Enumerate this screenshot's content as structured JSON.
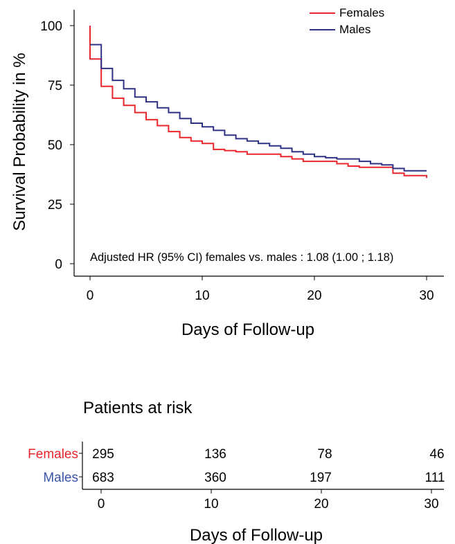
{
  "chart_data": [
    {
      "type": "line",
      "step": true,
      "xlabel": "Days of Follow-up",
      "ylabel": "Survival Probability in %",
      "xlim": [
        0,
        30
      ],
      "ylim": [
        0,
        100
      ],
      "xticks": [
        "0",
        "10",
        "20",
        "30"
      ],
      "yticks": [
        "0",
        "25",
        "50",
        "75",
        "100"
      ],
      "annotation": "Adjusted HR (95% CI) females vs. males : 1.08 (1.00 ; 1.18)",
      "legend_position": "top-right",
      "series": [
        {
          "name": "Females",
          "color": "#e8262b",
          "points": [
            [
              0,
              100
            ],
            [
              0,
              86
            ],
            [
              1,
              86
            ],
            [
              1,
              74.5
            ],
            [
              2,
              74.5
            ],
            [
              2,
              69.5
            ],
            [
              3,
              69.5
            ],
            [
              3,
              66.5
            ],
            [
              4,
              66.5
            ],
            [
              4,
              63.5
            ],
            [
              5,
              63.5
            ],
            [
              5,
              60.5
            ],
            [
              6,
              60.5
            ],
            [
              6,
              58
            ],
            [
              7,
              58
            ],
            [
              7,
              55.5
            ],
            [
              8,
              55.5
            ],
            [
              8,
              53
            ],
            [
              9,
              53
            ],
            [
              9,
              51.5
            ],
            [
              10,
              51.5
            ],
            [
              10,
              50.5
            ],
            [
              11,
              50.5
            ],
            [
              11,
              48
            ],
            [
              12,
              48
            ],
            [
              12,
              47.5
            ],
            [
              13,
              47.5
            ],
            [
              13,
              47
            ],
            [
              14,
              47
            ],
            [
              14,
              46
            ],
            [
              17,
              46
            ],
            [
              17,
              45
            ],
            [
              18,
              45
            ],
            [
              18,
              44
            ],
            [
              19,
              44
            ],
            [
              19,
              43
            ],
            [
              22,
              43
            ],
            [
              22,
              42
            ],
            [
              23,
              42
            ],
            [
              23,
              41
            ],
            [
              24,
              41
            ],
            [
              24,
              40.5
            ],
            [
              27,
              40.5
            ],
            [
              27,
              38
            ],
            [
              28,
              38
            ],
            [
              28,
              37
            ],
            [
              30,
              37
            ],
            [
              30,
              36
            ]
          ]
        },
        {
          "name": "Males",
          "color": "#2e3285",
          "points": [
            [
              0,
              92
            ],
            [
              1,
              92
            ],
            [
              1,
              82
            ],
            [
              2,
              82
            ],
            [
              2,
              77
            ],
            [
              3,
              77
            ],
            [
              3,
              73.5
            ],
            [
              4,
              73.5
            ],
            [
              4,
              70
            ],
            [
              5,
              70
            ],
            [
              5,
              68
            ],
            [
              6,
              68
            ],
            [
              6,
              65.5
            ],
            [
              7,
              65.5
            ],
            [
              7,
              63.5
            ],
            [
              8,
              63.5
            ],
            [
              8,
              61
            ],
            [
              9,
              61
            ],
            [
              9,
              59
            ],
            [
              10,
              59
            ],
            [
              10,
              57.5
            ],
            [
              11,
              57.5
            ],
            [
              11,
              56
            ],
            [
              12,
              56
            ],
            [
              12,
              54
            ],
            [
              13,
              54
            ],
            [
              13,
              52.5
            ],
            [
              14,
              52.5
            ],
            [
              14,
              51.5
            ],
            [
              15,
              51.5
            ],
            [
              15,
              50.5
            ],
            [
              16,
              50.5
            ],
            [
              16,
              49.5
            ],
            [
              17,
              49.5
            ],
            [
              17,
              48.5
            ],
            [
              18,
              48.5
            ],
            [
              18,
              47
            ],
            [
              19,
              47
            ],
            [
              19,
              46
            ],
            [
              20,
              46
            ],
            [
              20,
              45
            ],
            [
              21,
              45
            ],
            [
              21,
              44.5
            ],
            [
              22,
              44.5
            ],
            [
              22,
              44
            ],
            [
              24,
              44
            ],
            [
              24,
              43
            ],
            [
              25,
              43
            ],
            [
              25,
              42
            ],
            [
              26,
              42
            ],
            [
              26,
              41.5
            ],
            [
              27,
              41.5
            ],
            [
              27,
              40
            ],
            [
              28,
              40
            ],
            [
              28,
              39
            ],
            [
              30,
              39
            ]
          ]
        }
      ]
    },
    {
      "type": "table",
      "title": "Patients at risk",
      "xlabel": "Days of Follow-up",
      "xticks": [
        "0",
        "10",
        "20",
        "30"
      ],
      "rows": [
        {
          "name": "Females",
          "color": "#e8262b",
          "values": [
            "295",
            "136",
            "78",
            "46"
          ]
        },
        {
          "name": "Males",
          "color": "#3a55a8",
          "values": [
            "683",
            "360",
            "197",
            "111"
          ]
        }
      ]
    }
  ]
}
